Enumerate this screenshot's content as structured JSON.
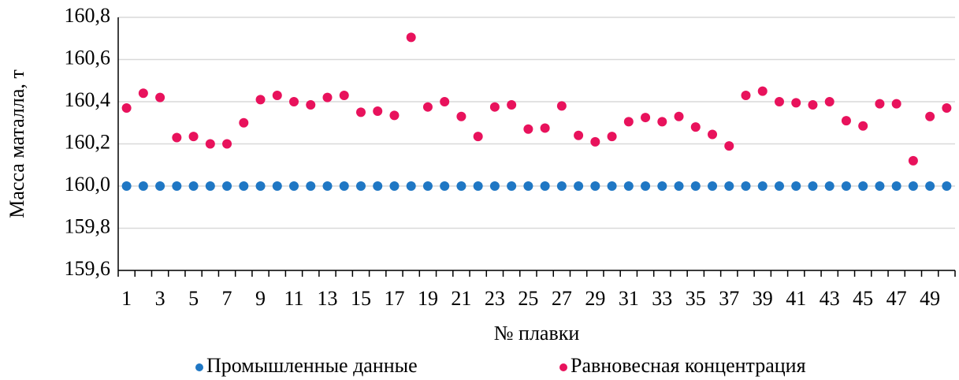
{
  "chart_data": {
    "type": "scatter",
    "xlabel": "№ плавки",
    "ylabel": "Масса маталла, т",
    "categories": [
      "1",
      null,
      "3",
      null,
      "5",
      null,
      "7",
      null,
      "9",
      null,
      "11",
      null,
      "13",
      null,
      "15",
      null,
      "17",
      null,
      "19",
      null,
      "21",
      null,
      "23",
      null,
      "25",
      null,
      "27",
      null,
      "29",
      null,
      "31",
      null,
      "33",
      null,
      "35",
      null,
      "37",
      null,
      "39",
      null,
      "41",
      null,
      "43",
      null,
      "45",
      null,
      "47",
      null,
      "49",
      null
    ],
    "series": [
      {
        "name": "Промышленные данные",
        "color": "#1f77c4",
        "values": [
          160,
          160,
          160,
          160,
          160,
          160,
          160,
          160,
          160,
          160,
          160,
          160,
          160,
          160,
          160,
          160,
          160,
          160,
          160,
          160,
          160,
          160,
          160,
          160,
          160,
          160,
          160,
          160,
          160,
          160,
          160,
          160,
          160,
          160,
          160,
          160,
          160,
          160,
          160,
          160,
          160,
          160,
          160,
          160,
          160,
          160,
          160,
          160,
          160,
          160
        ]
      },
      {
        "name": "Равновесная концентрация",
        "color": "#e8125c",
        "values": [
          160.37,
          160.44,
          160.42,
          160.23,
          160.235,
          160.2,
          160.2,
          160.3,
          160.41,
          160.43,
          160.4,
          160.385,
          160.42,
          160.43,
          160.35,
          160.355,
          160.335,
          160.705,
          160.375,
          160.4,
          160.33,
          160.235,
          160.375,
          160.385,
          160.27,
          160.275,
          160.38,
          160.24,
          160.21,
          160.235,
          160.305,
          160.325,
          160.305,
          160.33,
          160.28,
          160.245,
          160.19,
          160.43,
          160.45,
          160.4,
          160.395,
          160.385,
          160.4,
          160.31,
          160.285,
          160.39,
          160.39,
          160.12,
          160.33,
          160.37
        ]
      }
    ],
    "ylim": [
      159.6,
      160.8
    ],
    "yticks": [
      {
        "value": 159.6,
        "label": "159,6"
      },
      {
        "value": 159.8,
        "label": "159,8"
      },
      {
        "value": 160.0,
        "label": "160,0"
      },
      {
        "value": 160.2,
        "label": "160,2"
      },
      {
        "value": 160.4,
        "label": "160,4"
      },
      {
        "value": 160.6,
        "label": "160,6"
      },
      {
        "value": 160.8,
        "label": "160,8"
      }
    ],
    "grid": true,
    "legend": "bottom"
  }
}
